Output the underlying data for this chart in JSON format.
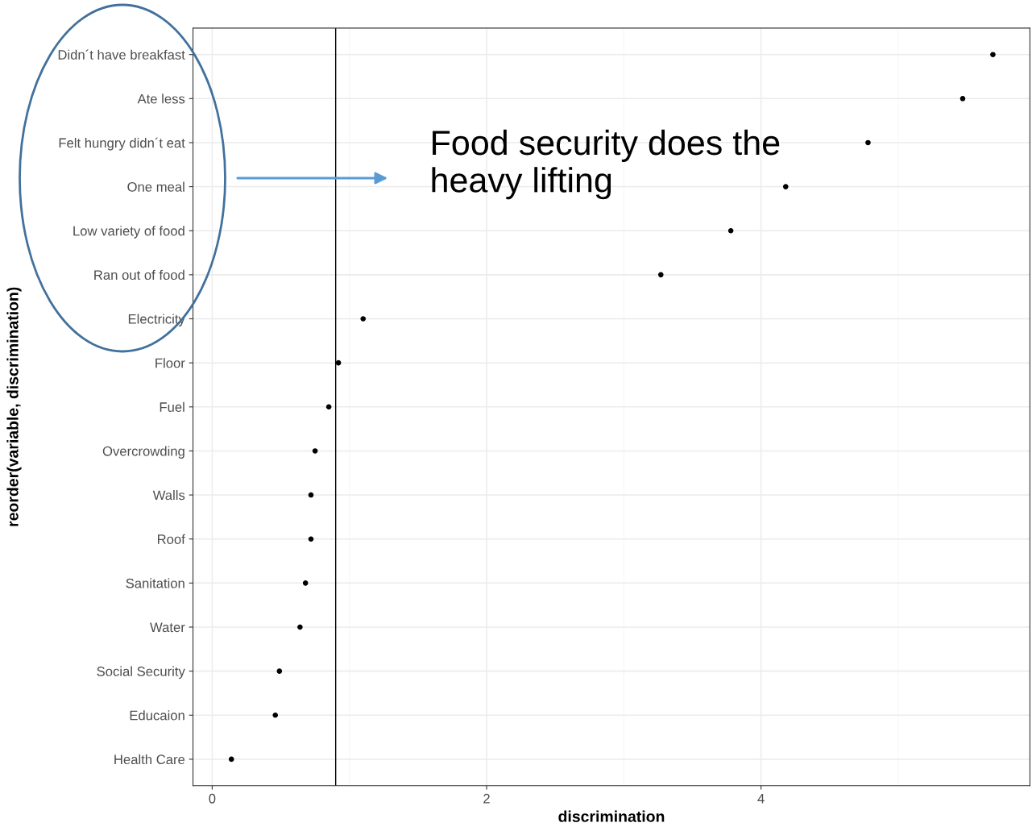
{
  "chart_data": {
    "type": "scatter",
    "orientation": "horizontal",
    "xlabel": "discrimination",
    "ylabel": "reorder(variable, discrimination)",
    "categories": [
      "Didn´t have breakfast",
      "Ate less",
      "Felt hungry didn´t eat",
      "One meal",
      "Low variety of food",
      "Ran out of food",
      "Electricity",
      "Floor",
      "Fuel",
      "Overcrowding",
      "Walls",
      "Roof",
      "Sanitation",
      "Water",
      "Social Security",
      "Educaion",
      "Health Care"
    ],
    "values": [
      5.69,
      5.47,
      4.78,
      4.18,
      3.78,
      3.27,
      1.1,
      0.92,
      0.85,
      0.75,
      0.72,
      0.72,
      0.68,
      0.64,
      0.49,
      0.46,
      0.14
    ],
    "color": "#000000",
    "marker": "circle",
    "xlim": [
      -0.14,
      5.96
    ],
    "xticks": [
      0,
      2,
      4
    ],
    "grid": true,
    "ref_lines": [
      {
        "axis": "x",
        "value": 0.9,
        "color": "#000000"
      }
    ],
    "annotations": [
      "Food security does the heavy lifting"
    ]
  }
}
